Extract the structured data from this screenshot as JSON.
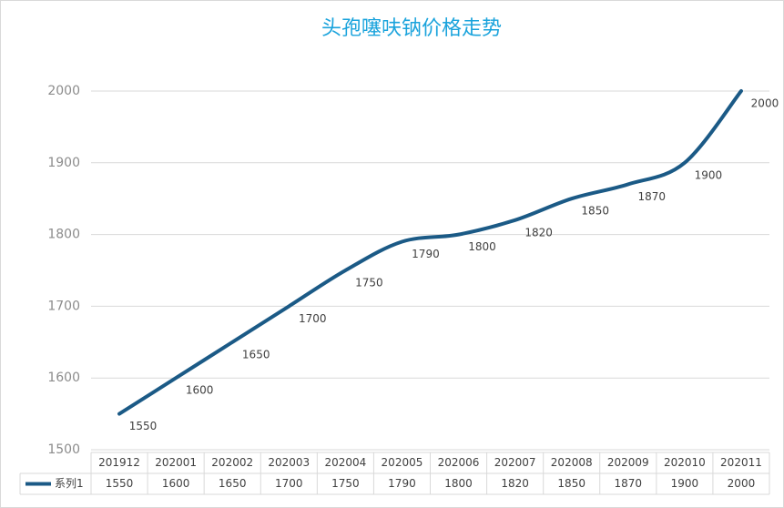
{
  "chart_data": {
    "type": "line",
    "title": "头孢噻呋钠价格走势",
    "categories": [
      "201912",
      "202001",
      "202002",
      "202003",
      "202004",
      "202005",
      "202006",
      "202007",
      "202008",
      "202009",
      "202010",
      "202011"
    ],
    "series": [
      {
        "name": "系列1",
        "color": "#1b5a86",
        "values": [
          1550,
          1600,
          1650,
          1700,
          1750,
          1790,
          1800,
          1820,
          1850,
          1870,
          1900,
          2000
        ]
      }
    ],
    "ylim": [
      1500,
      2000
    ],
    "yticks": [
      1500,
      1600,
      1700,
      1800,
      1900,
      2000
    ],
    "grid": true,
    "data_table": true
  }
}
